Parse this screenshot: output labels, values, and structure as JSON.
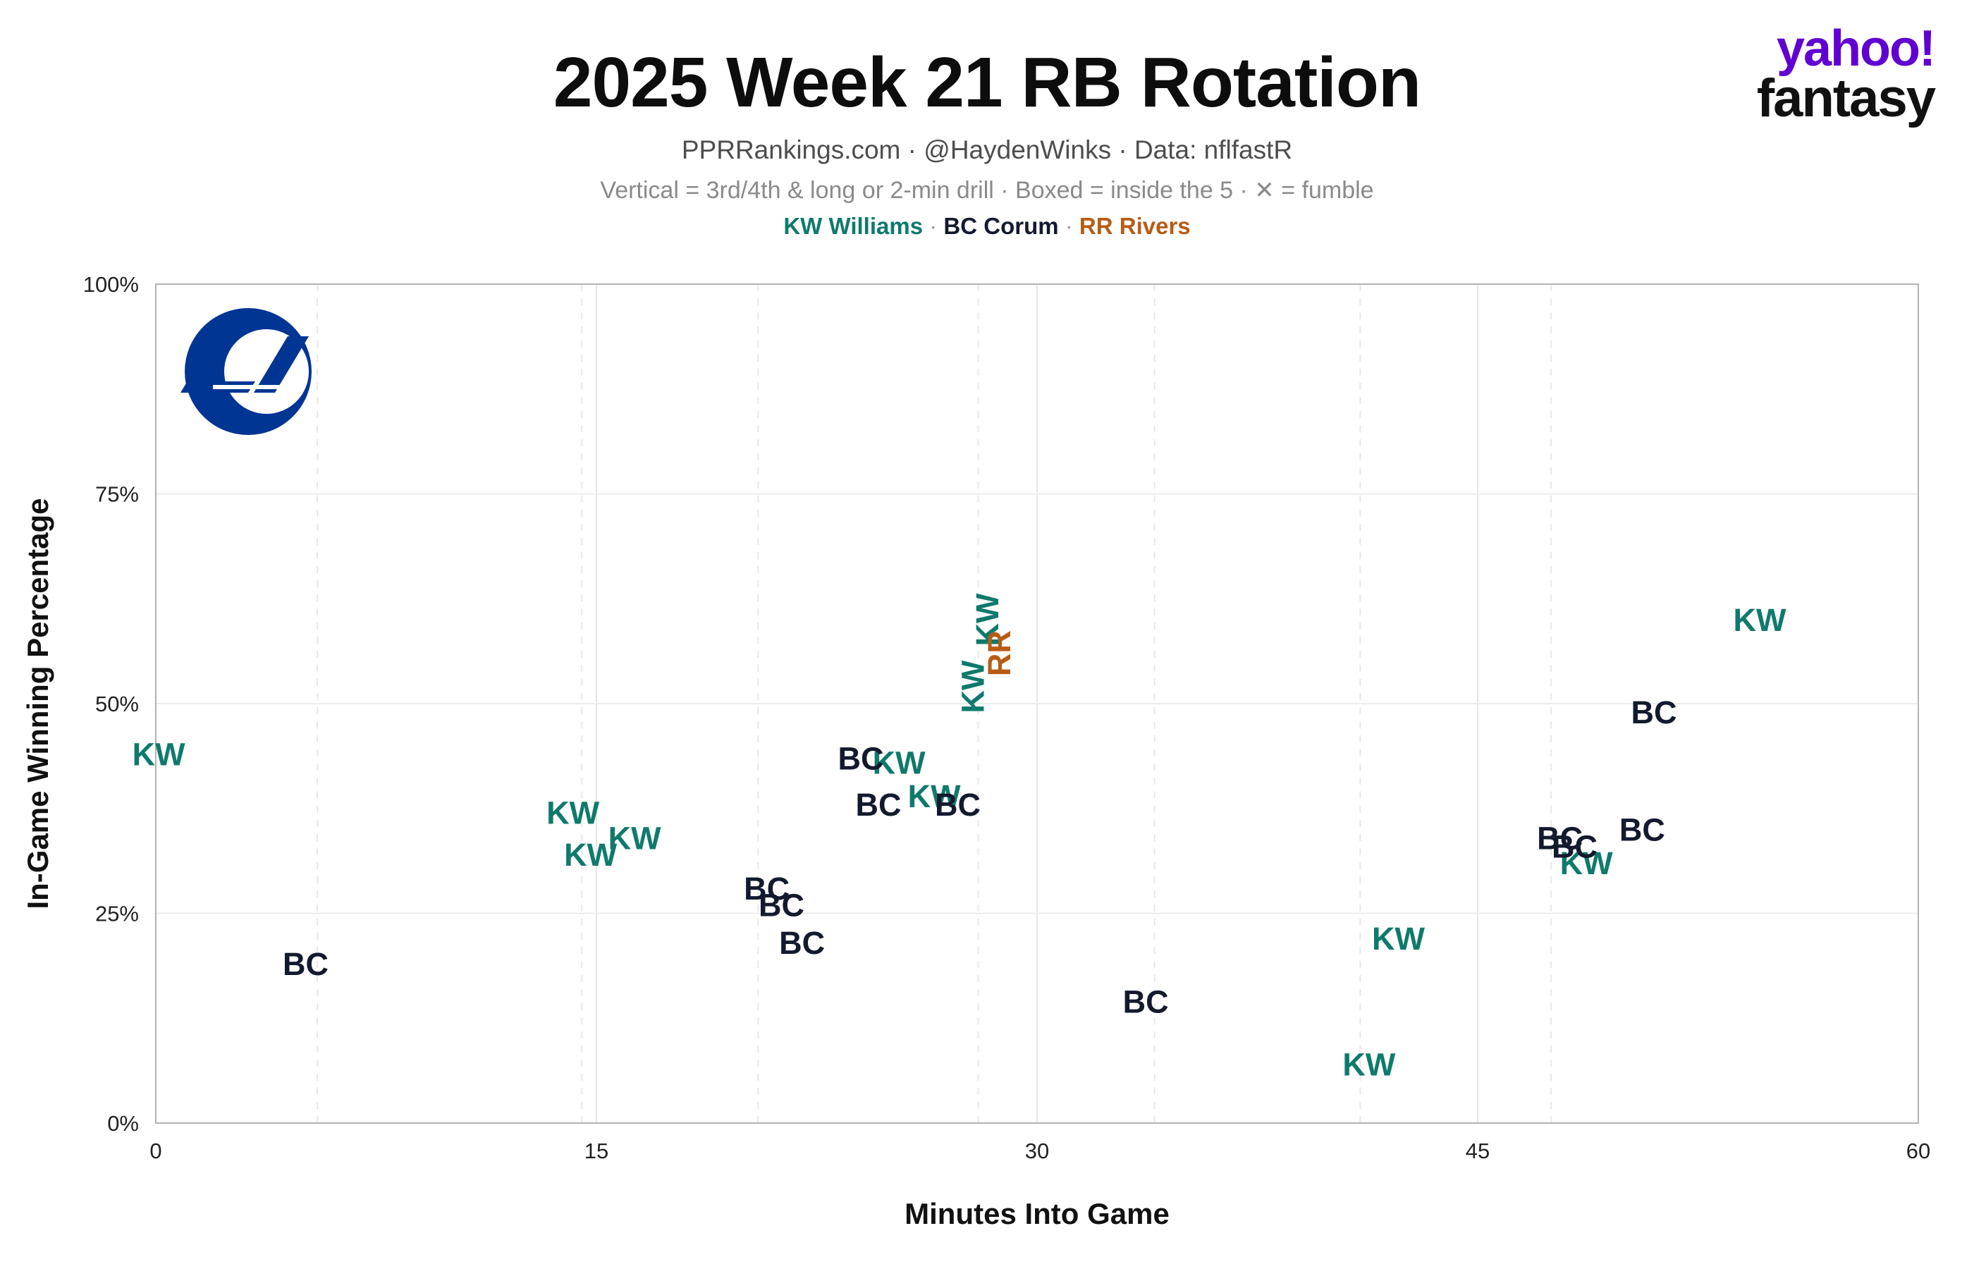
{
  "chart_data": {
    "type": "scatter",
    "title": "2025 Week 21 RB Rotation",
    "subtitle": "PPRRankings.com · @HaydenWinks · Data: nflfastR",
    "note": "Vertical = 3rd/4th & long or 2-min drill · Boxed = inside the 5 · ✕ = fumble",
    "xlabel": "Minutes Into Game",
    "ylabel": "In-Game Winning Percentage",
    "xlim": [
      0,
      60
    ],
    "ylim": [
      0,
      100
    ],
    "xticks": [
      "0",
      "15",
      "30",
      "45",
      "60"
    ],
    "yticks": [
      "0%",
      "25%",
      "50%",
      "75%",
      "100%"
    ],
    "grid": true,
    "legend": [
      {
        "label": "KW Williams",
        "color": "#0f7a6c"
      },
      {
        "label": "BC Corum",
        "color": "#131a2e"
      },
      {
        "label": "RR Rivers",
        "color": "#b85c14"
      }
    ],
    "series": [
      {
        "name": "KW Williams",
        "marker": "KW",
        "color": "#0f7a6c",
        "points": [
          {
            "x": 0.1,
            "y": 44,
            "vertical": false
          },
          {
            "x": 14.2,
            "y": 37,
            "vertical": false
          },
          {
            "x": 14.8,
            "y": 32,
            "vertical": false
          },
          {
            "x": 16.3,
            "y": 34,
            "vertical": false
          },
          {
            "x": 25.3,
            "y": 43,
            "vertical": false
          },
          {
            "x": 26.5,
            "y": 39,
            "vertical": false
          },
          {
            "x": 27.8,
            "y": 52,
            "vertical": true
          },
          {
            "x": 28.3,
            "y": 60,
            "vertical": true
          },
          {
            "x": 41.3,
            "y": 7,
            "vertical": false
          },
          {
            "x": 42.3,
            "y": 22,
            "vertical": false
          },
          {
            "x": 48.7,
            "y": 31,
            "vertical": false
          },
          {
            "x": 54.6,
            "y": 60,
            "vertical": false
          }
        ]
      },
      {
        "name": "BC Corum",
        "marker": "BC",
        "color": "#131a2e",
        "points": [
          {
            "x": 5.1,
            "y": 19
          },
          {
            "x": 20.8,
            "y": 28
          },
          {
            "x": 21.3,
            "y": 26
          },
          {
            "x": 22.0,
            "y": 21.5
          },
          {
            "x": 24.0,
            "y": 43.5
          },
          {
            "x": 24.6,
            "y": 38
          },
          {
            "x": 27.3,
            "y": 38
          },
          {
            "x": 33.7,
            "y": 14.5
          },
          {
            "x": 47.8,
            "y": 34
          },
          {
            "x": 48.3,
            "y": 33
          },
          {
            "x": 50.6,
            "y": 35
          },
          {
            "x": 51.0,
            "y": 49
          }
        ]
      },
      {
        "name": "RR Rivers",
        "marker": "RR",
        "color": "#b85c14",
        "points": [
          {
            "x": 28.7,
            "y": 56,
            "vertical": true
          }
        ]
      }
    ]
  },
  "logo": {
    "team": "LA",
    "team_color": "#003594",
    "team_accent": "#ffa300"
  },
  "brand": {
    "line1": "yahoo!",
    "line2": "fantasy",
    "color": "#6001d2"
  }
}
